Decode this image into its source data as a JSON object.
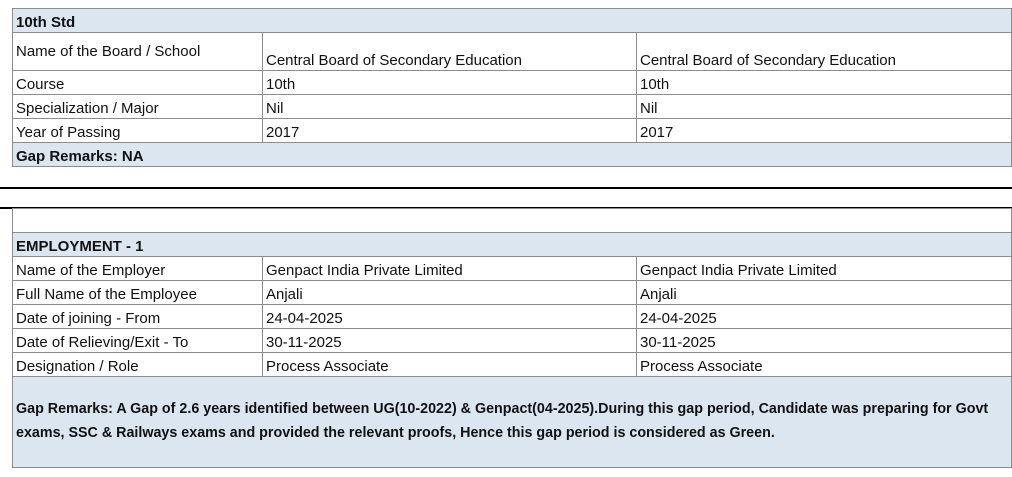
{
  "education": {
    "title": "10th Std",
    "rows": [
      {
        "label": "Name of the Board / School",
        "values": [
          "Central Board of Secondary Education",
          "Central Board of Secondary Education"
        ]
      },
      {
        "label": "Course",
        "values": [
          "10th",
          "10th"
        ]
      },
      {
        "label": "Specialization / Major",
        "values": [
          "Nil",
          "Nil"
        ]
      },
      {
        "label": "Year of Passing",
        "values": [
          "2017",
          "2017"
        ]
      }
    ],
    "remarks": "Gap Remarks: NA"
  },
  "employment": {
    "title": "EMPLOYMENT - 1",
    "rows": [
      {
        "label": "Name of the Employer",
        "values": [
          "Genpact India Private Limited",
          "Genpact India Private Limited"
        ]
      },
      {
        "label": "Full Name of the Employee",
        "values": [
          "Anjali",
          "Anjali"
        ]
      },
      {
        "label": "Date of joining - From",
        "values": [
          "24-04-2025",
          "24-04-2025"
        ]
      },
      {
        "label": "Date of Relieving/Exit - To",
        "values": [
          "30-11-2025",
          "30-11-2025"
        ]
      },
      {
        "label": "Designation / Role",
        "values": [
          "Process Associate",
          "Process Associate"
        ]
      }
    ],
    "remarks": "Gap Remarks: A Gap of 2.6 years identified between UG(10-2022) & Genpact(04-2025).During this gap period, Candidate was preparing for Govt exams, SSC & Railways exams and provided the relevant proofs, Hence this gap period is considered as Green."
  }
}
